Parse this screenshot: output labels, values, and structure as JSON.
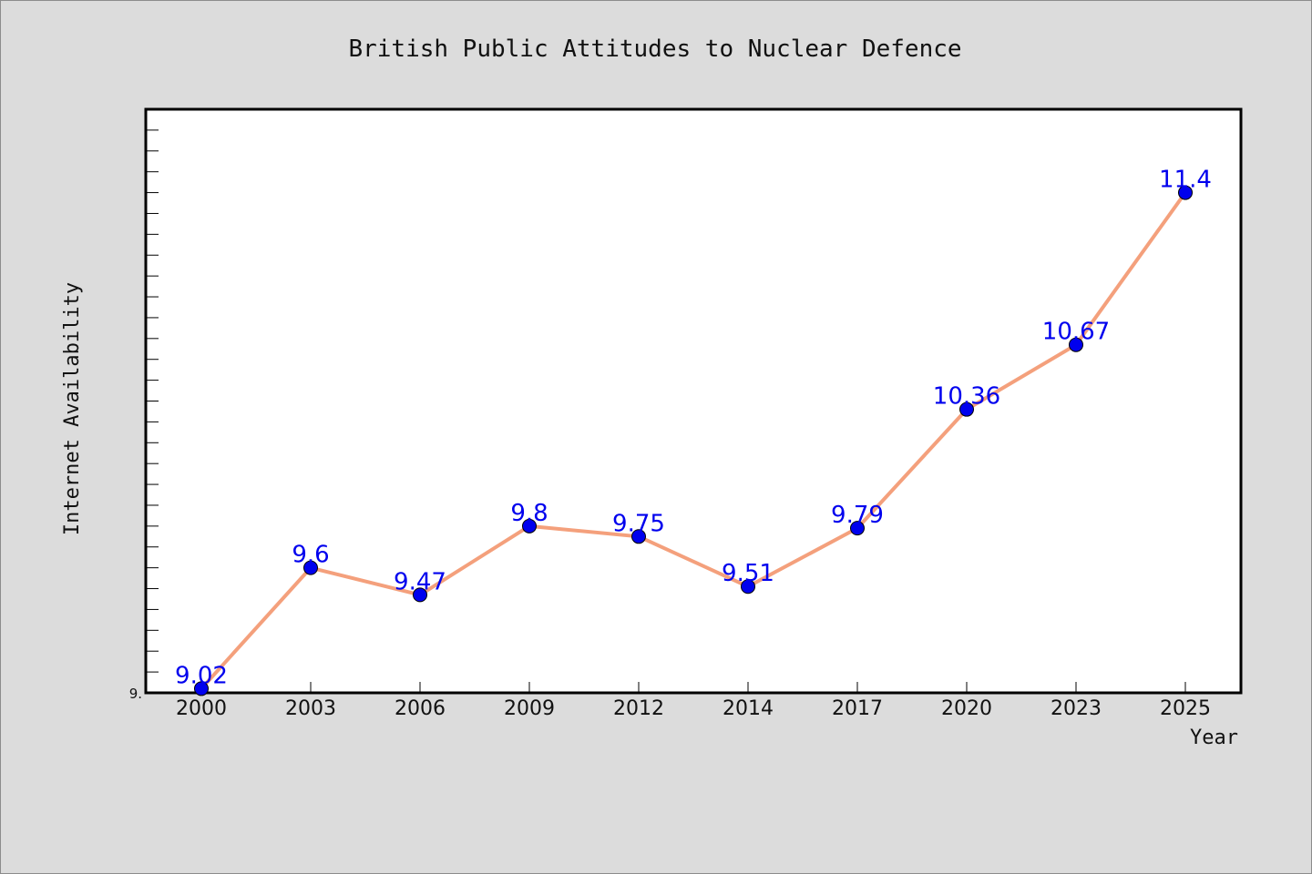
{
  "chart_data": {
    "type": "line",
    "title": "British Public Attitudes to Nuclear Defence",
    "xlabel": "Year",
    "ylabel": "Internet Availability",
    "categories": [
      "2000",
      "2003",
      "2006",
      "2009",
      "2012",
      "2014",
      "2017",
      "2020",
      "2023",
      "2025"
    ],
    "series": [
      {
        "values": [
          9.02,
          9.6,
          9.47,
          9.8,
          9.75,
          9.51,
          9.79,
          10.36,
          10.67,
          11.4
        ],
        "data_labels": [
          "9.02",
          "9.6",
          "9.47",
          "9.8",
          "9.75",
          "9.51",
          "9.79",
          "10.36",
          "10.67",
          "11.4"
        ]
      }
    ],
    "y_tick_label": "9.",
    "ylim": [
      9.0,
      11.8
    ],
    "y_minor_tick_step": 0.1,
    "grid": false,
    "colors": {
      "line": "#f4a07c",
      "marker": "#0000ee",
      "data_label": "#0000ee",
      "plot_background": "#ffffff",
      "figure_background": "#dcdcdc"
    }
  }
}
